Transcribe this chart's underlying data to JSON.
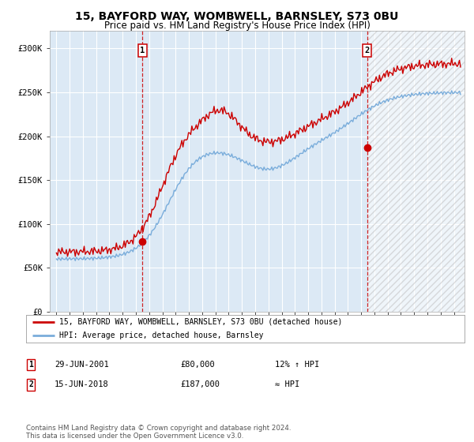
{
  "title": "15, BAYFORD WAY, WOMBWELL, BARNSLEY, S73 0BU",
  "subtitle": "Price paid vs. HM Land Registry's House Price Index (HPI)",
  "title_fontsize": 10,
  "subtitle_fontsize": 8.5,
  "background_color": "#ffffff",
  "plot_bg_color": "#dce9f5",
  "grid_color": "#ffffff",
  "ylim": [
    0,
    320000
  ],
  "yticks": [
    0,
    50000,
    100000,
    150000,
    200000,
    250000,
    300000
  ],
  "ytick_labels": [
    "£0",
    "£50K",
    "£100K",
    "£150K",
    "£200K",
    "£250K",
    "£300K"
  ],
  "xlim_left": 1994.5,
  "xlim_right": 2025.8,
  "sale1_date_num": 2001.49,
  "sale1_price": 80000,
  "sale2_date_num": 2018.45,
  "sale2_price": 187000,
  "legend_line1": "15, BAYFORD WAY, WOMBWELL, BARNSLEY, S73 0BU (detached house)",
  "legend_line2": "HPI: Average price, detached house, Barnsley",
  "annotation1_text": [
    "1",
    "29-JUN-2001",
    "£80,000",
    "12% ↑ HPI"
  ],
  "annotation2_text": [
    "2",
    "15-JUN-2018",
    "£187,000",
    "≈ HPI"
  ],
  "footer": "Contains HM Land Registry data © Crown copyright and database right 2024.\nThis data is licensed under the Open Government Licence v3.0.",
  "line_red_color": "#cc0000",
  "line_blue_color": "#7aaddb",
  "dot_color": "#cc0000"
}
